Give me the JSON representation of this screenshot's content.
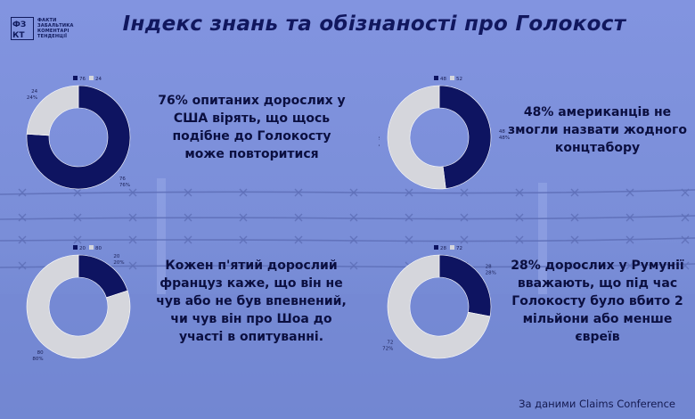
{
  "title": "Індекс знань та обізнаності про Голокост",
  "logo": {
    "mark": "ФЗ КТ",
    "lines": [
      "ФАКТИ",
      "ЗАБАЛЬТИКА",
      "КОМЕНТАРІ",
      "ТЕНДЕНЦІЇ"
    ]
  },
  "source": "За даними Claims Conference",
  "colors": {
    "dark": "#0e1461",
    "light": "#d5d6dc",
    "background": "#7a8fdc"
  },
  "chart_data": [
    {
      "type": "pie",
      "variant": "donut",
      "values": [
        76,
        24
      ],
      "labels": [
        [
          "76",
          "76%"
        ],
        [
          "24",
          "24%"
        ]
      ],
      "legend": [
        "76",
        "24"
      ],
      "legend_position": "top",
      "caption": [
        "76% опитаних дорослих у",
        "США вірять, що щось",
        "подібне до Голокосту",
        "може повторитися"
      ]
    },
    {
      "type": "pie",
      "variant": "donut",
      "values": [
        48,
        52
      ],
      "labels": [
        [
          "48",
          "48%"
        ],
        [
          "52",
          "52%"
        ]
      ],
      "legend": [
        "48",
        "52"
      ],
      "legend_position": "top",
      "caption": [
        "48% американців не",
        "змогли назвати жодного",
        "концтабору"
      ]
    },
    {
      "type": "pie",
      "variant": "donut",
      "values": [
        20,
        80
      ],
      "labels": [
        [
          "20",
          "20%"
        ],
        [
          "80",
          "80%"
        ]
      ],
      "legend": [
        "20",
        "80"
      ],
      "legend_position": "top",
      "caption": [
        "Кожен п'ятий дорослий",
        "француз каже, що він не",
        "чув або не був впевнений,",
        "чи чув він про Шоа до",
        "участі в опитуванні."
      ]
    },
    {
      "type": "pie",
      "variant": "donut",
      "values": [
        28,
        72
      ],
      "labels": [
        [
          "28",
          "28%"
        ],
        [
          "72",
          "72%"
        ]
      ],
      "legend": [
        "28",
        "72"
      ],
      "legend_position": "top",
      "caption": [
        "28% дорослих у Румунії",
        "вважають, що під час",
        "Голокосту було вбито 2",
        "мільйони або менше",
        "євреїв"
      ]
    }
  ]
}
